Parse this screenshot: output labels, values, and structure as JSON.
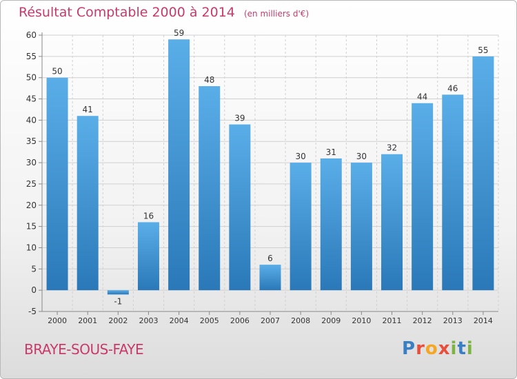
{
  "header": {
    "title": "Résultat Comptable 2000 à 2014",
    "unit": "(en milliers d'€)"
  },
  "footer": {
    "commune": "BRAYE-SOUS-FAYE",
    "brand": "Proxiti"
  },
  "colors": {
    "bar_light": "#5aaee8",
    "bar_dark": "#2a78b8",
    "title": "#c83a6a",
    "grid": "#d0d0d0"
  },
  "chart_data": {
    "type": "bar",
    "categories": [
      "2000",
      "2001",
      "2002",
      "2003",
      "2004",
      "2005",
      "2006",
      "2007",
      "2008",
      "2009",
      "2010",
      "2011",
      "2012",
      "2013",
      "2014"
    ],
    "values": [
      50,
      41,
      -1,
      16,
      59,
      48,
      39,
      6,
      30,
      31,
      30,
      32,
      44,
      46,
      55
    ],
    "data_labels": [
      "50",
      "41",
      "-1",
      "16",
      "59",
      "48",
      "39",
      "6",
      "30",
      "31",
      "30",
      "32",
      "44",
      "46",
      "55"
    ],
    "yticks": [
      -5,
      0,
      5,
      10,
      15,
      20,
      25,
      30,
      35,
      40,
      45,
      50,
      55,
      60
    ],
    "ylim": [
      -5,
      60
    ],
    "grid": true
  }
}
